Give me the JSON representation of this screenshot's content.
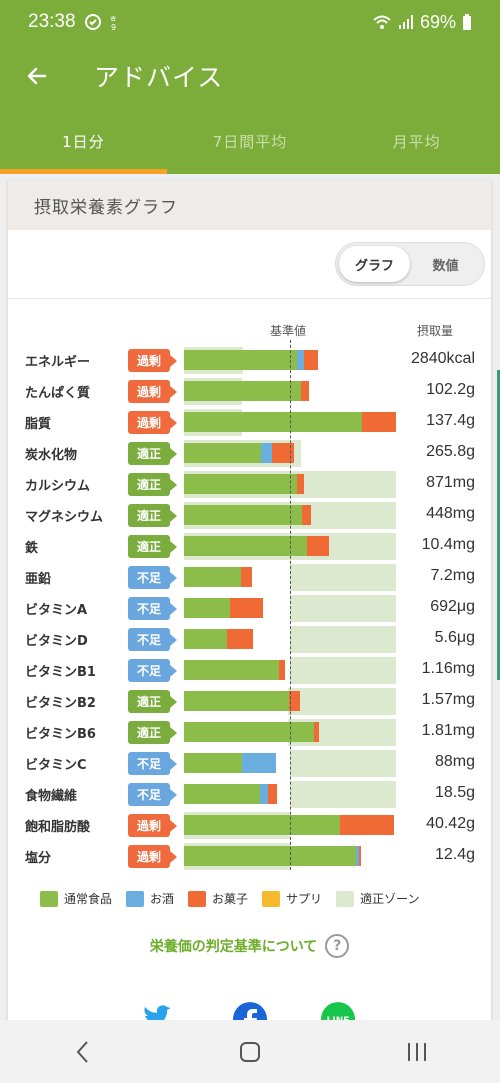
{
  "status": {
    "time": "23:38",
    "battery": "69%"
  },
  "appbar": {
    "title": "アドバイス"
  },
  "tabs": [
    {
      "label": "1日分",
      "active": true
    },
    {
      "label": "7日間平均",
      "active": false
    },
    {
      "label": "月平均",
      "active": false
    }
  ],
  "card": {
    "title": "摂取栄養素グラフ",
    "toggle": {
      "graph": "グラフ",
      "numbers": "数値",
      "selected": "graph"
    },
    "col_reference": "基準値",
    "col_intake": "摂取量"
  },
  "legend": [
    {
      "label": "通常食品",
      "color": "#8cbd4a"
    },
    {
      "label": "お酒",
      "color": "#6aaee0"
    },
    {
      "label": "お菓子",
      "color": "#f06a35"
    },
    {
      "label": "サプリ",
      "color": "#f6b82d"
    },
    {
      "label": "適正ゾーン",
      "color": "#dde9cf"
    }
  ],
  "criteria_link": "栄養価の判定基準について",
  "share_icons": [
    "twitter-icon",
    "facebook-icon",
    "line-icon"
  ],
  "chart_data": {
    "type": "bar",
    "reference_label": "基準値",
    "intake_label": "摂取量",
    "nutrients": [
      {
        "name": "エネルギー",
        "status": "過剰",
        "level": "over",
        "amount": "2840kcal",
        "zone": [
          0.0,
          0.56
        ],
        "food": 1.07,
        "alcohol": 0.06,
        "sweets": 0.13
      },
      {
        "name": "たんぱく質",
        "status": "過剰",
        "level": "over",
        "amount": "102.2g",
        "zone": [
          0.0,
          0.55
        ],
        "food": 1.1,
        "alcohol": 0.0,
        "sweets": 0.08
      },
      {
        "name": "脂質",
        "status": "過剰",
        "level": "over",
        "amount": "137.4g",
        "zone": [
          0.0,
          0.55
        ],
        "food": 1.68,
        "alcohol": 0.0,
        "sweets": 0.33
      },
      {
        "name": "炭水化物",
        "status": "適正",
        "level": "ok",
        "amount": "265.8g",
        "zone": [
          0.0,
          1.1
        ],
        "food": 0.73,
        "alcohol": 0.1,
        "sweets": 0.21
      },
      {
        "name": "カルシウム",
        "status": "適正",
        "level": "ok",
        "amount": "871mg",
        "zone": [
          0.0,
          2.0
        ],
        "food": 1.07,
        "alcohol": 0.0,
        "sweets": 0.06
      },
      {
        "name": "マグネシウム",
        "status": "適正",
        "level": "ok",
        "amount": "448mg",
        "zone": [
          0.0,
          2.0
        ],
        "food": 1.11,
        "alcohol": 0.0,
        "sweets": 0.09
      },
      {
        "name": "鉄",
        "status": "適正",
        "level": "ok",
        "amount": "10.4mg",
        "zone": [
          0.0,
          2.0
        ],
        "food": 1.16,
        "alcohol": 0.0,
        "sweets": 0.21
      },
      {
        "name": "亜鉛",
        "status": "不足",
        "level": "low",
        "amount": "7.2mg",
        "zone": [
          1.0,
          2.0
        ],
        "food": 0.54,
        "alcohol": 0.0,
        "sweets": 0.1
      },
      {
        "name": "ビタミンA",
        "status": "不足",
        "level": "low",
        "amount": "692μg",
        "zone": [
          1.0,
          2.0
        ],
        "food": 0.43,
        "alcohol": 0.0,
        "sweets": 0.32
      },
      {
        "name": "ビタミンD",
        "status": "不足",
        "level": "low",
        "amount": "5.6μg",
        "zone": [
          1.0,
          2.0
        ],
        "food": 0.41,
        "alcohol": 0.0,
        "sweets": 0.24
      },
      {
        "name": "ビタミンB1",
        "status": "不足",
        "level": "low",
        "amount": "1.16mg",
        "zone": [
          1.0,
          2.0
        ],
        "food": 0.9,
        "alcohol": 0.0,
        "sweets": 0.05
      },
      {
        "name": "ビタミンB2",
        "status": "適正",
        "level": "ok",
        "amount": "1.57mg",
        "zone": [
          0.98,
          2.0
        ],
        "food": 0.99,
        "alcohol": 0.0,
        "sweets": 0.1
      },
      {
        "name": "ビタミンB6",
        "status": "適正",
        "level": "ok",
        "amount": "1.81mg",
        "zone": [
          0.98,
          2.0
        ],
        "food": 1.23,
        "alcohol": 0.0,
        "sweets": 0.04
      },
      {
        "name": "ビタミンC",
        "status": "不足",
        "level": "low",
        "amount": "88mg",
        "zone": [
          1.0,
          2.0
        ],
        "food": 0.55,
        "alcohol": 0.32,
        "sweets": 0.0
      },
      {
        "name": "食物繊維",
        "status": "不足",
        "level": "low",
        "amount": "18.5g",
        "zone": [
          1.0,
          2.0
        ],
        "food": 0.72,
        "alcohol": 0.07,
        "sweets": 0.09
      },
      {
        "name": "飽和脂肪酸",
        "status": "過剰",
        "level": "over",
        "amount": "40.42g",
        "zone": [
          0.0,
          1.0
        ],
        "food": 1.47,
        "alcohol": 0.0,
        "sweets": 0.51
      },
      {
        "name": "塩分",
        "status": "過剰",
        "level": "over",
        "amount": "12.4g",
        "zone": [
          0.0,
          1.0
        ],
        "food": 1.62,
        "alcohol": 0.03,
        "sweets": 0.02
      }
    ]
  }
}
